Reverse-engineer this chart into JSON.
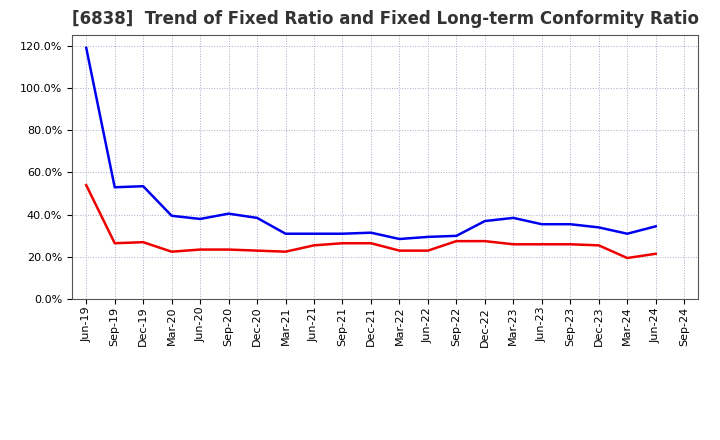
{
  "title": "[6838]  Trend of Fixed Ratio and Fixed Long-term Conformity Ratio",
  "x_labels": [
    "Jun-19",
    "Sep-19",
    "Dec-19",
    "Mar-20",
    "Jun-20",
    "Sep-20",
    "Dec-20",
    "Mar-21",
    "Jun-21",
    "Sep-21",
    "Dec-21",
    "Mar-22",
    "Jun-22",
    "Sep-22",
    "Dec-22",
    "Mar-23",
    "Jun-23",
    "Sep-23",
    "Dec-23",
    "Mar-24",
    "Jun-24",
    "Sep-24"
  ],
  "fixed_ratio": [
    119.0,
    53.0,
    53.5,
    39.5,
    38.0,
    40.5,
    38.5,
    31.0,
    31.0,
    31.0,
    31.5,
    28.5,
    29.5,
    30.0,
    37.0,
    38.5,
    35.5,
    35.5,
    34.0,
    31.0,
    34.5,
    null
  ],
  "fixed_lt_ratio": [
    54.0,
    26.5,
    27.0,
    22.5,
    23.5,
    23.5,
    23.0,
    22.5,
    25.5,
    26.5,
    26.5,
    23.0,
    23.0,
    27.5,
    27.5,
    26.0,
    26.0,
    26.0,
    25.5,
    19.5,
    21.5,
    null
  ],
  "ylim": [
    0,
    125
  ],
  "yticks": [
    0,
    20,
    40,
    60,
    80,
    100,
    120
  ],
  "fixed_ratio_color": "#0000ee",
  "fixed_lt_ratio_color": "#ee0000",
  "background_color": "#ffffff",
  "plot_bg_color": "#ffffff",
  "grid_color": "#aaaacc",
  "title_fontsize": 12,
  "tick_fontsize": 8,
  "legend_labels": [
    "Fixed Ratio",
    "Fixed Long-term Conformity Ratio"
  ]
}
